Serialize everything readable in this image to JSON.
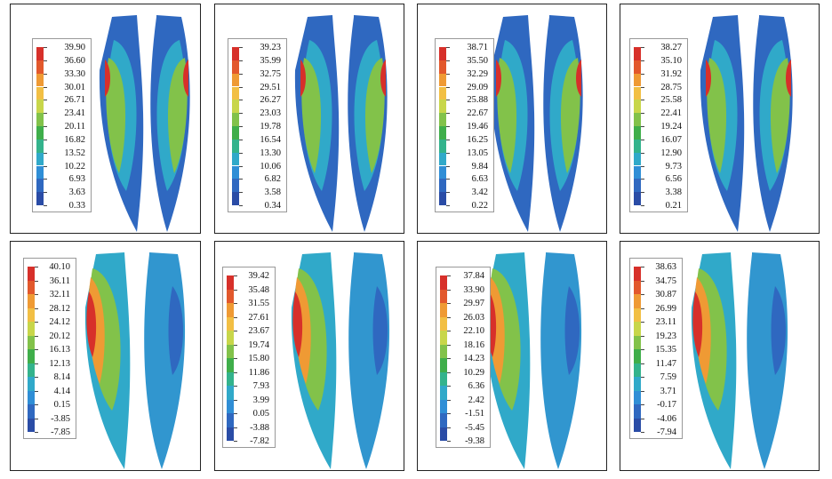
{
  "colors": [
    "#d7302a",
    "#e2582c",
    "#ef9a34",
    "#f2bf44",
    "#c8d64a",
    "#82c24a",
    "#3fae4a",
    "#33b38c",
    "#30a9c9",
    "#2f8ed6",
    "#2f68c0",
    "#2a4ca6",
    "#263a8f"
  ],
  "panels": [
    {
      "legend": [
        "39.90",
        "36.60",
        "33.30",
        "30.01",
        "26.71",
        "23.41",
        "20.11",
        "16.82",
        "13.52",
        "10.22",
        "6.93",
        "3.63",
        "0.33"
      ]
    },
    {
      "legend": [
        "39.23",
        "35.99",
        "32.75",
        "29.51",
        "26.27",
        "23.03",
        "19.78",
        "16.54",
        "13.30",
        "10.06",
        "6.82",
        "3.58",
        "0.34"
      ]
    },
    {
      "legend": [
        "38.71",
        "35.50",
        "32.29",
        "29.09",
        "25.88",
        "22.67",
        "19.46",
        "16.25",
        "13.05",
        "9.84",
        "6.63",
        "3.42",
        "0.22"
      ]
    },
    {
      "legend": [
        "38.27",
        "35.10",
        "31.92",
        "28.75",
        "25.58",
        "22.41",
        "19.24",
        "16.07",
        "12.90",
        "9.73",
        "6.56",
        "3.38",
        "0.21"
      ]
    },
    {
      "legend": [
        "40.10",
        "36.11",
        "32.11",
        "28.12",
        "24.12",
        "20.12",
        "16.13",
        "12.13",
        "8.14",
        "4.14",
        "0.15",
        "-3.85",
        "-7.85"
      ]
    },
    {
      "legend": [
        "39.42",
        "35.48",
        "31.55",
        "27.61",
        "23.67",
        "19.74",
        "15.80",
        "11.86",
        "7.93",
        "3.99",
        "0.05",
        "-3.88",
        "-7.82"
      ]
    },
    {
      "legend": [
        "37.84",
        "33.90",
        "29.97",
        "26.03",
        "22.10",
        "18.16",
        "14.23",
        "10.29",
        "6.36",
        "2.42",
        "-1.51",
        "-5.45",
        "-9.38"
      ]
    },
    {
      "legend": [
        "38.63",
        "34.75",
        "30.87",
        "26.99",
        "23.11",
        "19.23",
        "15.35",
        "11.47",
        "7.59",
        "3.71",
        "-0.17",
        "-4.06",
        "-7.94"
      ]
    }
  ]
}
